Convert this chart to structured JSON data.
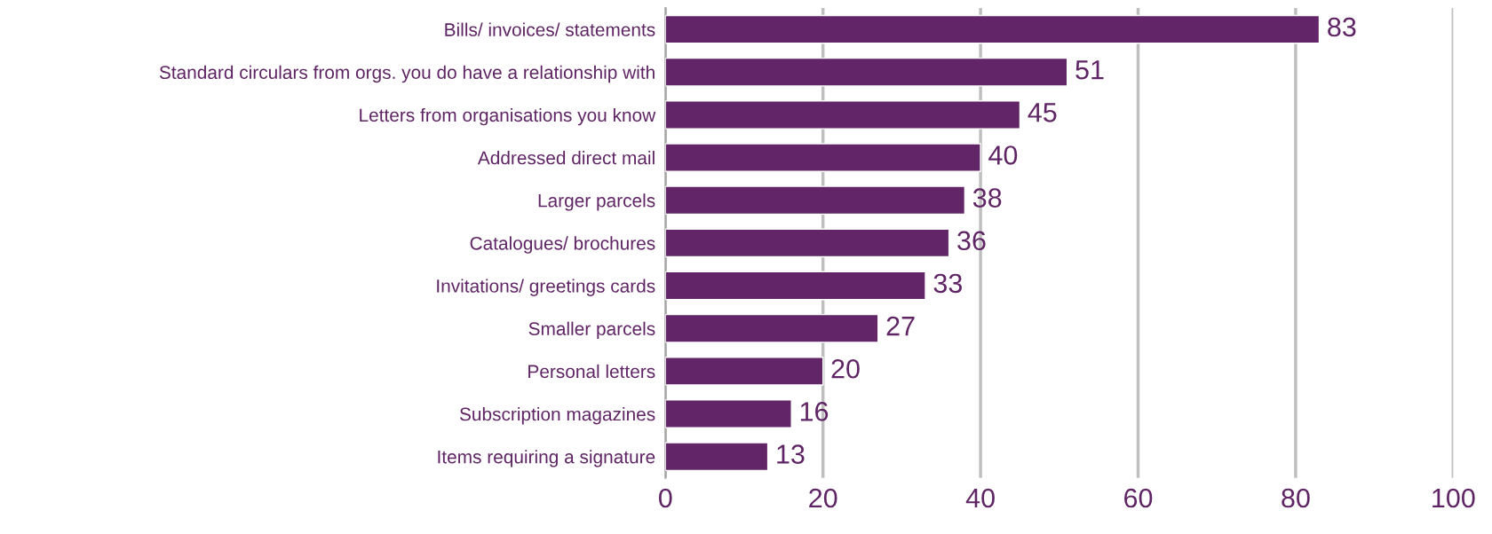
{
  "chart_data": {
    "type": "bar",
    "orientation": "horizontal",
    "categories": [
      "Bills/ invoices/ statements",
      "Standard circulars from orgs. you do have a relationship with",
      "Letters from organisations you know",
      "Addressed direct mail",
      "Larger parcels",
      "Catalogues/ brochures",
      "Invitations/ greetings cards",
      "Smaller parcels",
      "Personal letters",
      "Subscription magazines",
      "Items requiring a signature"
    ],
    "values": [
      83,
      51,
      45,
      40,
      38,
      36,
      33,
      27,
      20,
      16,
      13
    ],
    "color": "#622567",
    "xlim": [
      0,
      100
    ],
    "xticks": [
      0,
      20,
      40,
      60,
      80,
      100
    ],
    "grid": "x",
    "data_labels": true
  }
}
